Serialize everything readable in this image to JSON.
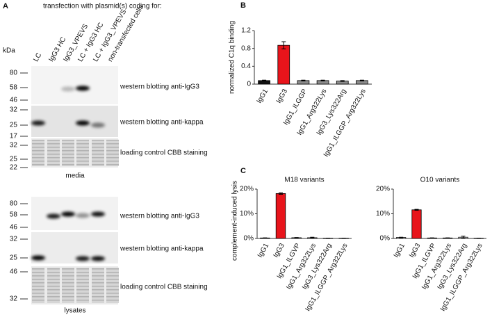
{
  "panel_a": {
    "label": "A",
    "heading": "transfection with plasmid(s) coding for:",
    "lanes": [
      "LC",
      "IgG3 HC",
      "IgG3_VPEVS",
      "LC + IgG3 HC",
      "LC + IgG3_VPEVS",
      "non-transfected cells"
    ],
    "kda": "kDa",
    "blots": [
      {
        "markers": [
          "80",
          "58",
          "46"
        ],
        "label": "western blotting anti-IgG3"
      },
      {
        "markers": [
          "32",
          "25",
          "17"
        ],
        "label": "western blotting anti-kappa"
      },
      {
        "markers": [
          "32",
          "25",
          "22"
        ],
        "label": "loading control CBB staining"
      },
      {
        "markers": [
          "80",
          "58",
          "46"
        ],
        "label": "western blotting anti-IgG3"
      },
      {
        "markers": [
          "32",
          "25"
        ],
        "label": "western blotting anti-kappa"
      },
      {
        "markers": [
          "46",
          "32"
        ],
        "label": "loading control CBB staining"
      }
    ],
    "groups": [
      "media",
      "lysates"
    ]
  },
  "chart_data": [
    {
      "type": "bar",
      "panel": "B",
      "ylabel": "normalized C1q binding",
      "categories": [
        "IgG1",
        "IgG3",
        "IgG1_ILGGP",
        "IgG1_Arg322Lys",
        "IgG3_Lys322Arg",
        "IgG1_ILGGP_Arg322Lys"
      ],
      "values": [
        0.08,
        0.87,
        0.08,
        0.08,
        0.07,
        0.08
      ],
      "errors": [
        0.01,
        0.08,
        0.01,
        0.01,
        0.01,
        0.01
      ],
      "colors": [
        "#111111",
        "#e8141b",
        "#8c8c8c",
        "#8c8c8c",
        "#8c8c8c",
        "#8c8c8c"
      ],
      "ylim": [
        0,
        1.2
      ],
      "yticks": [
        0,
        0.4,
        0.8,
        1.2
      ]
    },
    {
      "type": "bar",
      "panel": "C",
      "title": "M18 variants",
      "ylabel": "complement-induced lysis",
      "categories": [
        "IgG1",
        "IgG3",
        "IgG1_ILGVP",
        "IgG1_Arg322Lys",
        "IgG3_Lys322Arg",
        "IgG1_ILGGP_Arg322Lys"
      ],
      "values": [
        0.2,
        18.2,
        0.3,
        0.3,
        0.1,
        0.1
      ],
      "errors": [
        0.05,
        0.3,
        0.1,
        0.2,
        0.05,
        0.05
      ],
      "colors": [
        "#ffffff",
        "#e8141b",
        "#ffffff",
        "#ffffff",
        "#ffffff",
        "#ffffff"
      ],
      "ylim": [
        0,
        20
      ],
      "yticks": [
        {
          "value": 0,
          "label": "0%"
        },
        {
          "value": 10,
          "label": "10%"
        },
        {
          "value": 20,
          "label": "20%"
        }
      ]
    },
    {
      "type": "bar",
      "title": "O10 variants",
      "categories": [
        "IgG1",
        "IgG3",
        "IgG1_ILGVP",
        "IgG1_Arg322Lys",
        "IgG3_Lys322Arg",
        "IgG1_ILGGP_Arg322Lys"
      ],
      "values": [
        0.4,
        11.6,
        0.2,
        0.2,
        0.5,
        0.1
      ],
      "errors": [
        0.1,
        0.2,
        0.05,
        0.05,
        0.4,
        0.05
      ],
      "colors": [
        "#ffffff",
        "#e8141b",
        "#ffffff",
        "#ffffff",
        "#ffffff",
        "#ffffff"
      ],
      "ylim": [
        0,
        20
      ],
      "yticks": [
        {
          "value": 0,
          "label": "0%"
        },
        {
          "value": 10,
          "label": "10%"
        },
        {
          "value": 20,
          "label": "20%"
        }
      ]
    }
  ]
}
